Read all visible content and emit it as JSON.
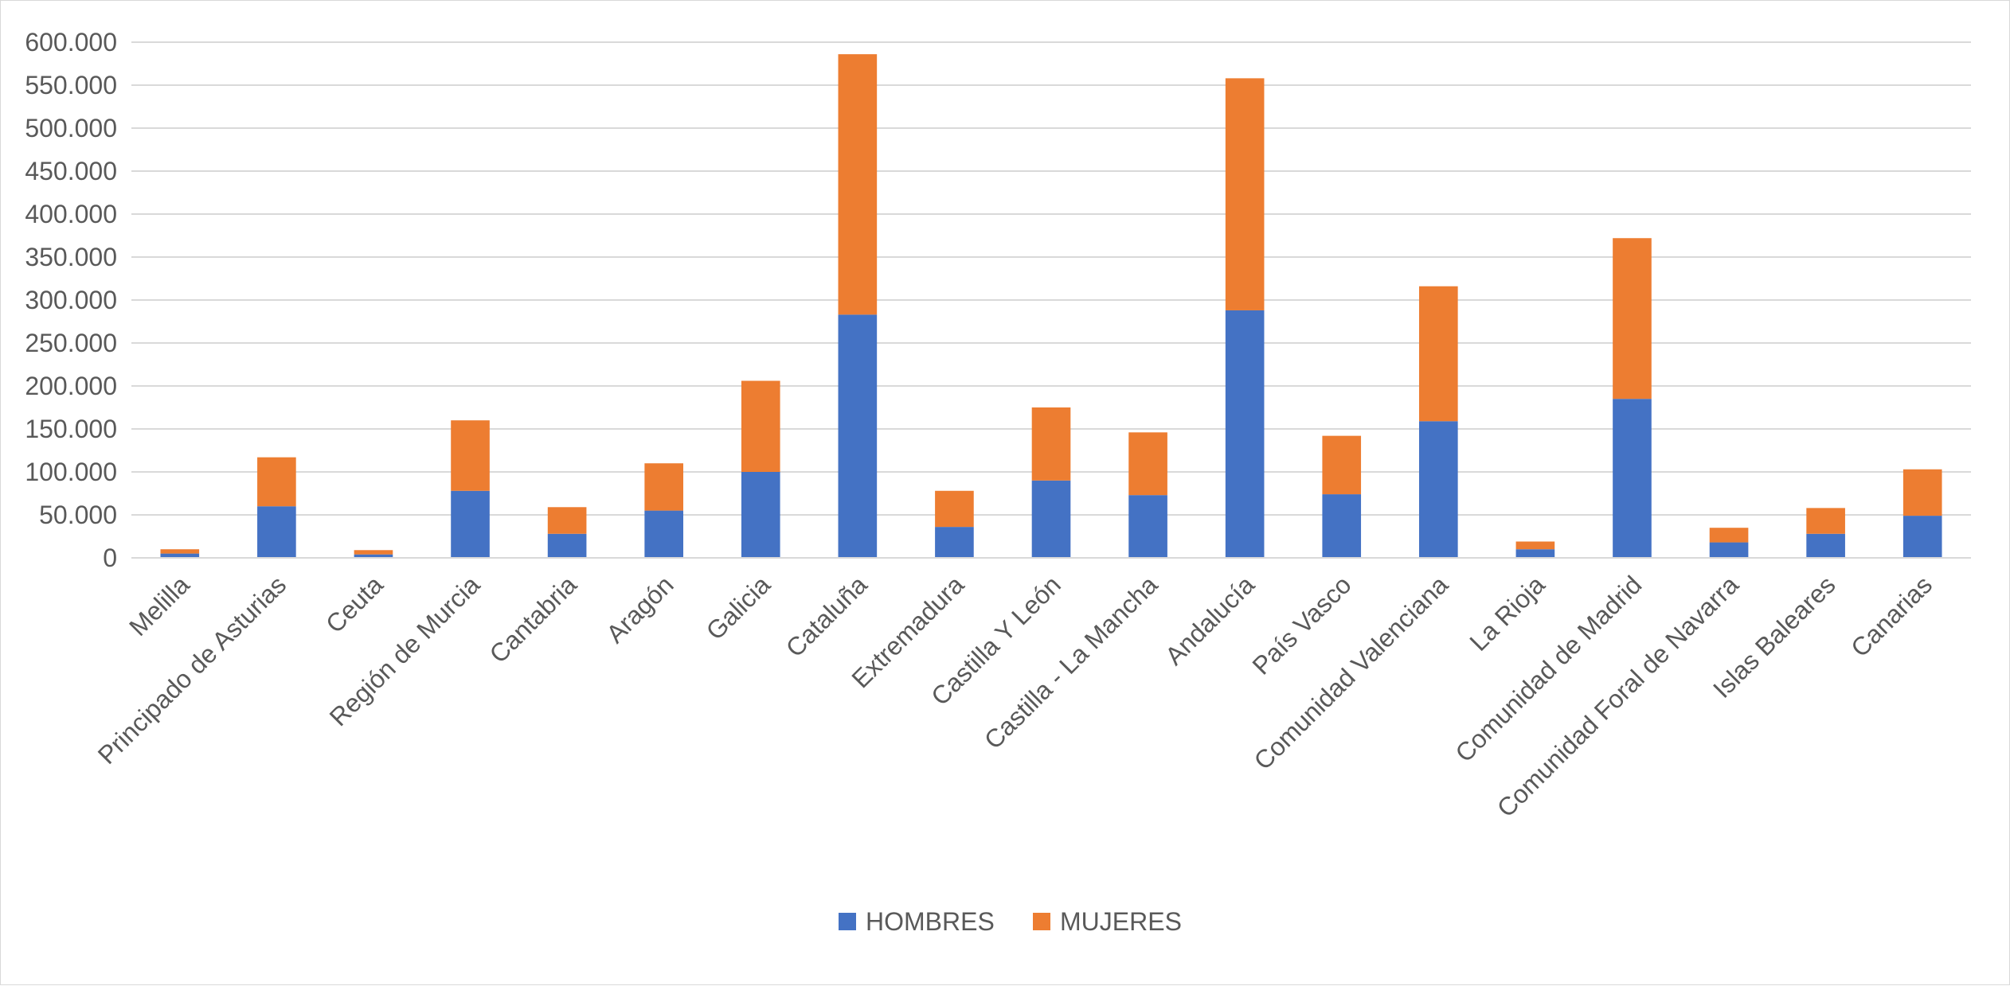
{
  "chart_data": {
    "type": "bar",
    "stacked": true,
    "categories": [
      "Melilla",
      "Principado de Asturias",
      "Ceuta",
      "Región de Murcia",
      "Cantabria",
      "Aragón",
      "Galicia",
      "Cataluña",
      "Extremadura",
      "Castilla Y León",
      "Castilla - La Mancha",
      "Andalucía",
      "País Vasco",
      "Comunidad Valenciana",
      "La Rioja",
      "Comunidad de Madrid",
      "Comunidad Foral de Navarra",
      "Islas Baleares",
      "Canarias"
    ],
    "series": [
      {
        "name": "HOMBRES",
        "color": "#4472c4",
        "values": [
          5000,
          60000,
          4000,
          78000,
          28000,
          55000,
          100000,
          283000,
          36000,
          90000,
          73000,
          288000,
          74000,
          159000,
          10000,
          185000,
          18000,
          28000,
          49000
        ]
      },
      {
        "name": "MUJERES",
        "color": "#ed7d31",
        "values": [
          5000,
          57000,
          5000,
          82000,
          31000,
          55000,
          106000,
          303000,
          42000,
          85000,
          73000,
          270000,
          68000,
          157000,
          9000,
          187000,
          17000,
          30000,
          54000
        ]
      }
    ],
    "ylim": [
      0,
      600000
    ],
    "yticks": [
      {
        "value": 0,
        "label": "0"
      },
      {
        "value": 50000,
        "label": "50.000"
      },
      {
        "value": 100000,
        "label": "100.000"
      },
      {
        "value": 150000,
        "label": "150.000"
      },
      {
        "value": 200000,
        "label": "200.000"
      },
      {
        "value": 250000,
        "label": "250.000"
      },
      {
        "value": 300000,
        "label": "300.000"
      },
      {
        "value": 350000,
        "label": "350.000"
      },
      {
        "value": 400000,
        "label": "400.000"
      },
      {
        "value": 450000,
        "label": "450.000"
      },
      {
        "value": 500000,
        "label": "500.000"
      },
      {
        "value": 550000,
        "label": "550.000"
      },
      {
        "value": 600000,
        "label": "600.000"
      }
    ],
    "grid": true,
    "legend_position": "bottom",
    "title": "",
    "xlabel": "",
    "ylabel": ""
  }
}
